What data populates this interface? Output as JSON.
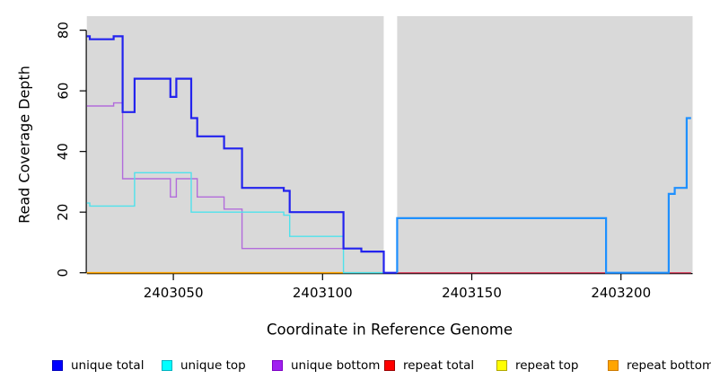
{
  "chart_data": {
    "type": "line",
    "step": true,
    "title": "",
    "xlabel": "Coordinate in Reference Genome",
    "ylabel": "Read Coverage Depth",
    "xlim": [
      2403021,
      2403224
    ],
    "ylim": [
      0,
      80
    ],
    "xticks": [
      2403050,
      2403100,
      2403150,
      2403200
    ],
    "xtick_labels": [
      "2403050",
      "2403100",
      "2403150",
      "2403200"
    ],
    "yticks": [
      0,
      20,
      40,
      60,
      80
    ],
    "ytick_labels": [
      "0",
      "20",
      "40",
      "60",
      "80"
    ],
    "panel_bg": "#d9d9d9",
    "grid": false,
    "legend_position": "bottom",
    "gap_x": [
      2403120.5,
      2403125
    ],
    "series": [
      {
        "name": "unique total",
        "legend_color": "#0000ff",
        "legend_border": "#0000bb",
        "segments": [
          {
            "color": "#2323ee",
            "width": 2.2,
            "points": [
              [
                2403021,
                78
              ],
              [
                2403022,
                77
              ],
              [
                2403030,
                78
              ],
              [
                2403033,
                53
              ],
              [
                2403037,
                64
              ],
              [
                2403049,
                58
              ],
              [
                2403051,
                64
              ],
              [
                2403056,
                51
              ],
              [
                2403058,
                45
              ],
              [
                2403067,
                41
              ],
              [
                2403073,
                28
              ],
              [
                2403087,
                27
              ],
              [
                2403089,
                20
              ],
              [
                2403107,
                8
              ],
              [
                2403113,
                7
              ],
              [
                2403120.5,
                0
              ]
            ],
            "end_x": 2403125
          },
          {
            "color": "#1e90ff",
            "width": 2.2,
            "points": [
              [
                2403125,
                0
              ],
              [
                2403125,
                18
              ],
              [
                2403195,
                0
              ],
              [
                2403216,
                26
              ],
              [
                2403218,
                28
              ],
              [
                2403222,
                51
              ]
            ],
            "end_x": 2403223.5
          }
        ]
      },
      {
        "name": "unique top",
        "legend_color": "#00ffff",
        "legend_border": "#00b3c0",
        "segments": [
          {
            "color": "#4fe2ec",
            "width": 1.4,
            "points": [
              [
                2403021,
                23
              ],
              [
                2403022,
                22
              ],
              [
                2403037,
                33
              ],
              [
                2403056,
                20
              ],
              [
                2403087,
                19
              ],
              [
                2403089,
                12
              ],
              [
                2403107,
                0
              ]
            ],
            "end_x": 2403120.5
          }
        ]
      },
      {
        "name": "unique bottom",
        "legend_color": "#a020f0",
        "legend_border": "#7d00c4",
        "segments": [
          {
            "color": "#b26cdb",
            "width": 1.4,
            "points": [
              [
                2403021,
                55
              ],
              [
                2403030,
                56
              ],
              [
                2403033,
                31
              ],
              [
                2403049,
                25
              ],
              [
                2403051,
                31
              ],
              [
                2403058,
                25
              ],
              [
                2403067,
                21
              ],
              [
                2403073,
                8
              ],
              [
                2403113,
                7
              ],
              [
                2403120.5,
                0
              ]
            ],
            "end_x": 2403120.5
          }
        ]
      },
      {
        "name": "repeat total",
        "legend_color": "#ff0000",
        "legend_border": "#990000",
        "segments": [
          {
            "color": "#d84763",
            "width": 1.4,
            "points": [
              [
                2403125,
                0
              ]
            ],
            "end_x": 2403223.5
          }
        ]
      },
      {
        "name": "repeat top",
        "legend_color": "#ffff00",
        "legend_border": "#b0a800",
        "segments": [
          {
            "color": "#e8e86a",
            "width": 1.2,
            "points": [
              [
                2403021,
                0
              ]
            ],
            "end_x": 2403120.5
          }
        ]
      },
      {
        "name": "repeat bottom",
        "legend_color": "#ffa500",
        "legend_border": "#cc7a00",
        "segments": [
          {
            "color": "#ffa500",
            "width": 1.6,
            "points": [
              [
                2403021,
                0
              ]
            ],
            "end_x": 2403107
          }
        ]
      }
    ],
    "baseline_overlays": [
      {
        "color": "#6fc487",
        "width": 1.6,
        "from": 2403107,
        "to": 2403120.5,
        "value": 0
      }
    ]
  },
  "legend": {
    "item_x": [
      58,
      180,
      303,
      428,
      553,
      677
    ]
  }
}
